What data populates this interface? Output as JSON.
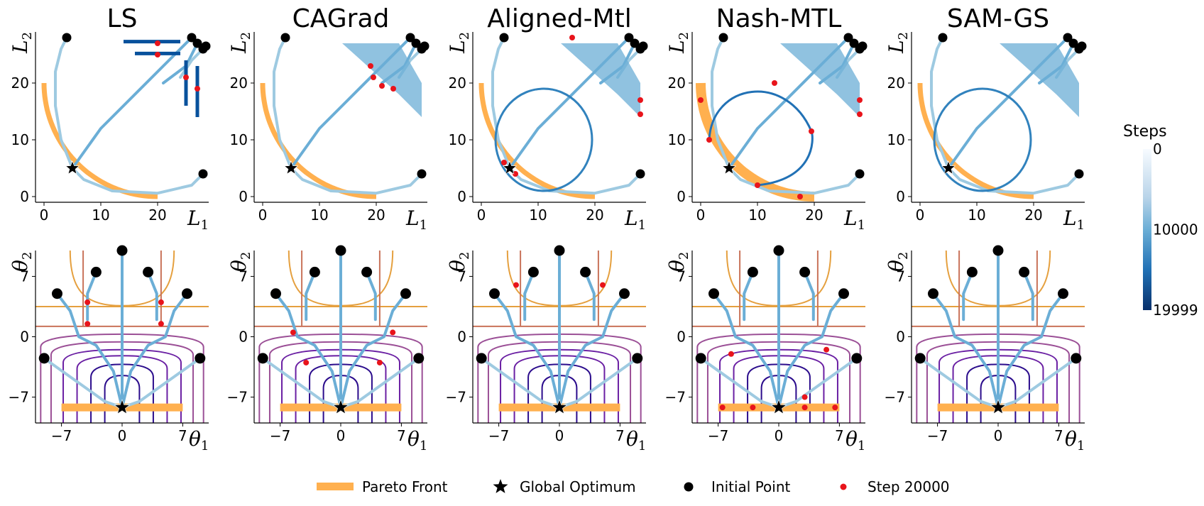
{
  "chart_data": {
    "type": "line",
    "panels": [
      {
        "title": "LS"
      },
      {
        "title": "CAGrad"
      },
      {
        "title": "Aligned-Mtl"
      },
      {
        "title": "Nash-MTL"
      },
      {
        "title": "SAM-GS"
      }
    ],
    "loss_space": {
      "xlabel": "L",
      "xsub": "1",
      "ylabel": "L",
      "ysub": "2",
      "xlim": [
        -1.5,
        29
      ],
      "ylim": [
        -1,
        29
      ],
      "xticks": [
        0,
        10,
        20
      ],
      "yticks": [
        0,
        10,
        20
      ],
      "xtick_labels": [
        "0",
        "10",
        "20"
      ],
      "ytick_labels": [
        "0",
        "10",
        "20"
      ],
      "global_optimum": [
        5,
        5
      ],
      "initial_points": [
        [
          4,
          28
        ],
        [
          26,
          28
        ],
        [
          27,
          27
        ],
        [
          28,
          26
        ],
        [
          28.5,
          26.5
        ],
        [
          28,
          4
        ]
      ]
    },
    "param_space": {
      "xlabel": "θ",
      "xsub": "1",
      "ylabel": "θ",
      "ysub": "2",
      "xlim": [
        -10,
        10
      ],
      "ylim": [
        -10,
        10
      ],
      "xticks": [
        -7,
        0,
        7
      ],
      "yticks": [
        -7,
        0,
        7
      ],
      "xtick_labels": [
        "−7",
        "0",
        "7"
      ],
      "ytick_labels": [
        "−7",
        "0",
        "7"
      ],
      "pareto_front_segment": [
        [
          -7,
          -8.2
        ],
        [
          7,
          -8.2
        ]
      ],
      "global_optimum": [
        0,
        -8.2
      ],
      "initial_points": [
        [
          -9,
          -2.5
        ],
        [
          -7.5,
          5
        ],
        [
          -3,
          7.5
        ],
        [
          0,
          10
        ],
        [
          3,
          7.5
        ],
        [
          7.5,
          5
        ],
        [
          9,
          -2.5
        ]
      ]
    },
    "final_points": [
      {
        "method": "LS",
        "loss_space": [
          [
            20,
            27
          ],
          [
            20,
            25
          ],
          [
            25,
            21
          ],
          [
            27,
            19
          ]
        ],
        "param_space": [
          [
            -4,
            4
          ],
          [
            -4,
            1.5
          ],
          [
            4.5,
            4
          ],
          [
            4.5,
            1.5
          ],
          [
            0,
            -8.2
          ]
        ]
      },
      {
        "method": "CAGrad",
        "loss_space": [
          [
            19,
            23
          ],
          [
            19.5,
            21
          ],
          [
            21,
            19.5
          ],
          [
            23,
            19
          ]
        ],
        "param_space": [
          [
            -5.5,
            0.5
          ],
          [
            -4,
            -3
          ],
          [
            4.5,
            -3
          ],
          [
            6,
            0.5
          ],
          [
            0,
            -8.2
          ]
        ]
      },
      {
        "method": "Aligned-Mtl",
        "loss_space": [
          [
            4,
            6
          ],
          [
            5,
            5
          ],
          [
            6,
            4
          ],
          [
            16,
            28
          ],
          [
            28,
            17
          ],
          [
            28,
            14.5
          ]
        ],
        "param_space": [
          [
            -5,
            6
          ],
          [
            5,
            6
          ],
          [
            0,
            -8.2
          ]
        ]
      },
      {
        "method": "Nash-MTL",
        "loss_space": [
          [
            0,
            17
          ],
          [
            1.5,
            10
          ],
          [
            10,
            2
          ],
          [
            13,
            20
          ],
          [
            17.5,
            0
          ],
          [
            19.5,
            11.5
          ],
          [
            28,
            17
          ],
          [
            28,
            14.5
          ]
        ],
        "param_space": [
          [
            -5.5,
            -2
          ],
          [
            -6.5,
            -8.2
          ],
          [
            -3,
            -8.2
          ],
          [
            3,
            -7
          ],
          [
            3,
            -8.2
          ],
          [
            5.5,
            -1.5
          ],
          [
            6.5,
            -8.2
          ]
        ]
      },
      {
        "method": "SAM-GS",
        "loss_space": [],
        "param_space": []
      }
    ],
    "legend": [
      {
        "label": "Pareto Front",
        "marker": "orange-band",
        "color": "#ffb04f"
      },
      {
        "label": "Global Optimum",
        "marker": "star",
        "color": "#000000"
      },
      {
        "label": "Initial Point",
        "marker": "circle",
        "color": "#000000"
      },
      {
        "label": "Step 20000",
        "marker": "small-circle",
        "color": "#e8141b"
      }
    ],
    "colorbar": {
      "title": "Steps",
      "tick_labels": [
        "0",
        "10000",
        "19999"
      ],
      "range": [
        0,
        19999
      ],
      "colormap": [
        "#f7fbff",
        "#9ecae1",
        "#4292c6",
        "#2171b5",
        "#08306b"
      ]
    },
    "contour_colors": [
      "#e5a03f",
      "#c9735a",
      "#9b4f96",
      "#6a1fa3",
      "#2b0c8c"
    ]
  }
}
